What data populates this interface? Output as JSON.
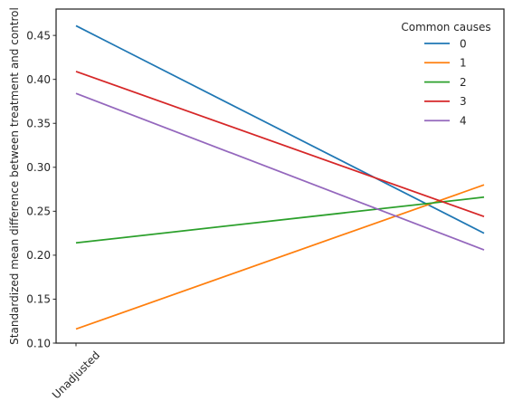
{
  "chart_data": {
    "type": "line",
    "x": [
      "Unadjusted",
      ""
    ],
    "xtick_labels": [
      "Unadjusted"
    ],
    "ylabel": "Standardized mean difference between treatment and control",
    "ylim": [
      0.1,
      0.48
    ],
    "yticks": [
      0.1,
      0.15,
      0.2,
      0.25,
      0.3,
      0.35,
      0.4,
      0.45
    ],
    "ytick_labels": [
      "0.10",
      "0.15",
      "0.20",
      "0.25",
      "0.30",
      "0.35",
      "0.40",
      "0.45"
    ],
    "grid": false,
    "legend": {
      "title": "Common causes",
      "placement": "top-right"
    },
    "series": [
      {
        "name": "0",
        "color": "#1f77b4",
        "values": [
          0.461,
          0.225
        ]
      },
      {
        "name": "1",
        "color": "#ff7f0e",
        "values": [
          0.116,
          0.28
        ]
      },
      {
        "name": "2",
        "color": "#2ca02c",
        "values": [
          0.214,
          0.266
        ]
      },
      {
        "name": "3",
        "color": "#d62728",
        "values": [
          0.409,
          0.244
        ]
      },
      {
        "name": "4",
        "color": "#9467bd",
        "values": [
          0.384,
          0.206
        ]
      }
    ]
  }
}
